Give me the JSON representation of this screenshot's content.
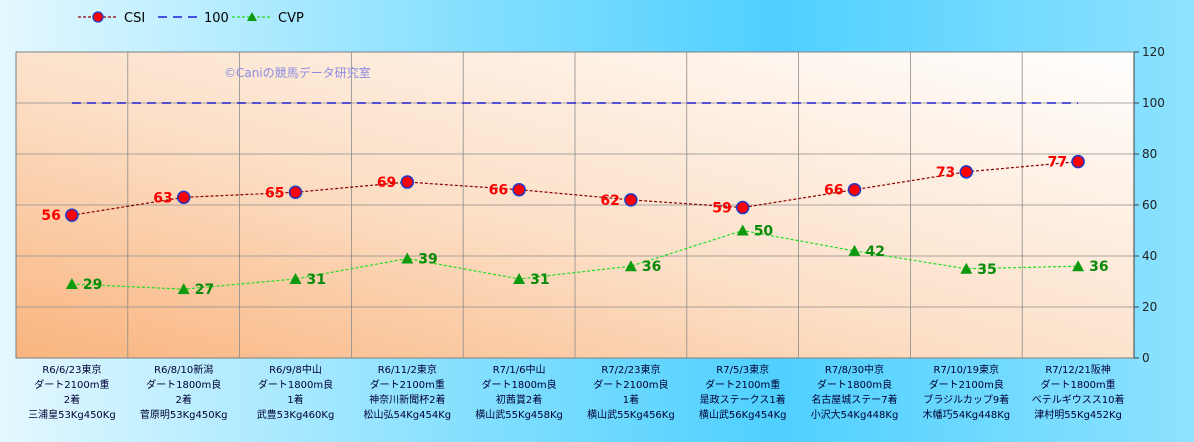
{
  "chart_data": {
    "type": "line",
    "watermark": "©Caniの競馬データ研究室",
    "legend": {
      "position": "top-left",
      "entries": [
        "CSI",
        "100",
        "CVP"
      ]
    },
    "y_axis": {
      "position": "right",
      "min": 0,
      "max": 120,
      "step": 20,
      "ticks": [
        "0",
        "20",
        "40",
        "60",
        "80",
        "100",
        "120"
      ]
    },
    "grid": true,
    "categories": [
      [
        "R6/6/23東京",
        "ダート2100m重",
        "2着",
        "三浦皇53Kg450Kg"
      ],
      [
        "R6/8/10新潟",
        "ダート1800m良",
        "2着",
        "菅原明53Kg450Kg"
      ],
      [
        "R6/9/8中山",
        "ダート1800m良",
        "1着",
        "武豊53Kg460Kg"
      ],
      [
        "R6/11/2東京",
        "ダート2100m重",
        "神奈川新聞杯2着",
        "松山弘54Kg454Kg"
      ],
      [
        "R7/1/6中山",
        "ダート1800m良",
        "初茜賞2着",
        "横山武55Kg458Kg"
      ],
      [
        "R7/2/23東京",
        "ダート2100m良",
        "1着",
        "横山武55Kg456Kg"
      ],
      [
        "R7/5/3東京",
        "ダート2100m重",
        "是政ステークス1着",
        "横山武56Kg454Kg"
      ],
      [
        "R7/8/30中京",
        "ダート1800m良",
        "名古屋城ステー7着",
        "小沢大54Kg448Kg"
      ],
      [
        "R7/10/19東京",
        "ダート2100m良",
        "ブラジルカップ9着",
        "木幡巧54Kg448Kg"
      ],
      [
        "R7/12/21阪神",
        "ダート1800m重",
        "ベテルギウスス10着",
        "津村明55Kg452Kg"
      ]
    ],
    "series": [
      {
        "name": "CSI",
        "color": "#8B0000",
        "marker": "circle",
        "marker_fill": "#FF0000",
        "marker_edge": "#1E3CC8",
        "label_color": "#FF0000",
        "values": [
          56,
          63,
          65,
          69,
          66,
          62,
          59,
          66,
          73,
          77
        ]
      },
      {
        "name": "100",
        "color": "#1E1ED2",
        "marker": "none",
        "values": [
          100,
          100,
          100,
          100,
          100,
          100,
          100,
          100,
          100,
          100
        ]
      },
      {
        "name": "CVP",
        "color": "#22DD22",
        "marker": "triangle",
        "marker_fill": "#0E9A0E",
        "label_color": "#0A8A0A",
        "values": [
          29,
          27,
          31,
          39,
          31,
          36,
          50,
          42,
          35,
          36
        ]
      }
    ]
  }
}
